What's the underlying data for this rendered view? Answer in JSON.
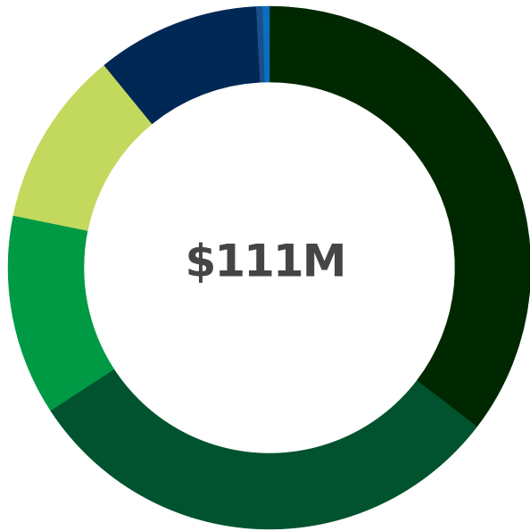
{
  "chart_data": {
    "type": "donut",
    "center_label": "$111M",
    "values": [
      35.4,
      30.4,
      12.4,
      10.9,
      10.1,
      0.4,
      0.4
    ],
    "colors": [
      "#002800",
      "#00532e",
      "#009a44",
      "#c3d95e",
      "#002855",
      "#1a4f8a",
      "#0a6fc0"
    ]
  }
}
